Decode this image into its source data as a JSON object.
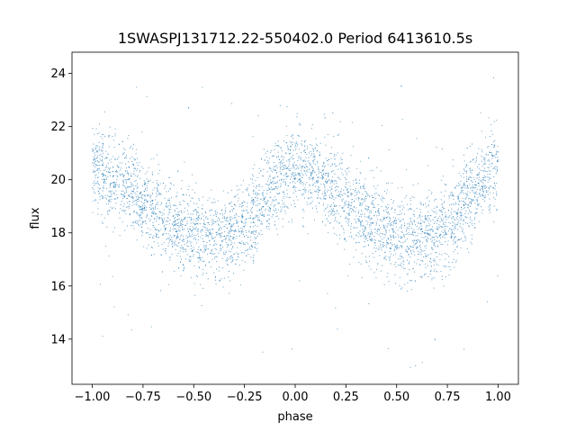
{
  "chart_data": {
    "type": "scatter",
    "title": "1SWASPJ131712.22-550402.0 Period 6413610.5s",
    "xlabel": "phase",
    "ylabel": "flux",
    "xlim": [
      -1.1,
      1.1
    ],
    "ylim": [
      12.3,
      24.8
    ],
    "xticks": [
      -1.0,
      -0.75,
      -0.5,
      -0.25,
      0.0,
      0.25,
      0.5,
      0.75,
      1.0
    ],
    "xtick_labels": [
      "−1.00",
      "−0.75",
      "−0.50",
      "−0.25",
      "0.00",
      "0.25",
      "0.50",
      "0.75",
      "1.00"
    ],
    "yticks": [
      14,
      16,
      18,
      20,
      22,
      24
    ],
    "ytick_labels": [
      "14",
      "16",
      "18",
      "20",
      "22",
      "24"
    ],
    "grid": false,
    "point_color": "#1f77b4",
    "profile": {
      "x": [
        0.0,
        0.05,
        0.1,
        0.15,
        0.2,
        0.25,
        0.3,
        0.35,
        0.4,
        0.45,
        0.5,
        0.55,
        0.6,
        0.65,
        0.7,
        0.75,
        0.8,
        0.85,
        0.9,
        0.95,
        1.0
      ],
      "y": [
        20.6,
        20.2,
        20.1,
        19.8,
        19.6,
        19.1,
        18.9,
        18.6,
        18.4,
        18.1,
        18.0,
        17.8,
        17.8,
        17.9,
        17.9,
        18.2,
        18.6,
        19.2,
        19.8,
        20.1,
        20.6
      ],
      "scatter": 0.8
    }
  }
}
